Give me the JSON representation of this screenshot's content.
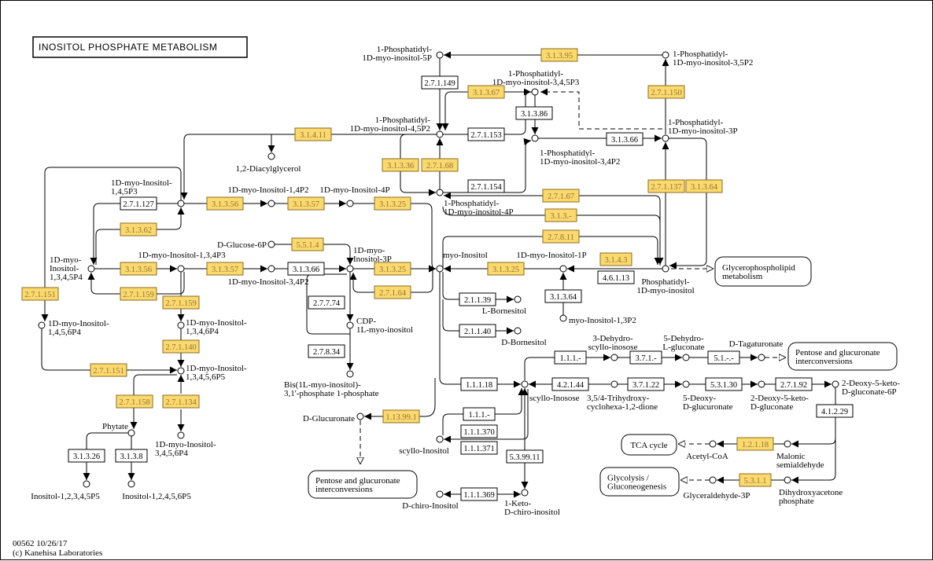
{
  "title": "INOSITOL PHOSPHATE METABOLISM",
  "footer": {
    "code": "00562 10/26/17",
    "copyright": "(c) Kanehisa Laboratories"
  },
  "colors": {
    "highlight_fill": "#fcd96f",
    "highlight_border": "#8a6d1e",
    "highlight_text": "#8c7430"
  },
  "enzymes": [
    {
      "label": "3.1.3.95",
      "highlighted": true
    },
    {
      "label": "2.7.1.149",
      "highlighted": false
    },
    {
      "label": "3.1.3.67",
      "highlighted": true
    },
    {
      "label": "3.1.3.86",
      "highlighted": false
    },
    {
      "label": "2.7.1.150",
      "highlighted": true
    },
    {
      "label": "3.1.4.11",
      "highlighted": true
    },
    {
      "label": "2.7.1.153",
      "highlighted": false
    },
    {
      "label": "3.1.3.66",
      "highlighted": false
    },
    {
      "label": "3.1.3.36",
      "highlighted": true
    },
    {
      "label": "2.7.1.68",
      "highlighted": true
    },
    {
      "label": "2.7.1.154",
      "highlighted": false
    },
    {
      "label": "2.7.1.67",
      "highlighted": true
    },
    {
      "label": "2.7.1.137",
      "highlighted": true
    },
    {
      "label": "3.1.3.64",
      "highlighted": true
    },
    {
      "label": "2.7.1.127",
      "highlighted": false
    },
    {
      "label": "3.1.3.56",
      "highlighted": true
    },
    {
      "label": "3.1.3.57",
      "highlighted": true
    },
    {
      "label": "3.1.3.25",
      "highlighted": true
    },
    {
      "label": "3.1.3.-",
      "highlighted": true
    },
    {
      "label": "3.1.3.62",
      "highlighted": true
    },
    {
      "label": "2.7.8.11",
      "highlighted": true
    },
    {
      "label": "5.5.1.4",
      "highlighted": true
    },
    {
      "label": "3.1.3.56",
      "highlighted": true
    },
    {
      "label": "3.1.3.57",
      "highlighted": true
    },
    {
      "label": "3.1.3.66",
      "highlighted": false
    },
    {
      "label": "3.1.3.25",
      "highlighted": true
    },
    {
      "label": "3.1.3.25",
      "highlighted": true
    },
    {
      "label": "3.1.4.3",
      "highlighted": true
    },
    {
      "label": "4.6.1.13",
      "highlighted": false
    },
    {
      "label": "2.7.1.159",
      "highlighted": true
    },
    {
      "label": "2.7.1.64",
      "highlighted": true
    },
    {
      "label": "2.7.1.151",
      "highlighted": true
    },
    {
      "label": "2.7.1.159",
      "highlighted": true
    },
    {
      "label": "2.7.7.74",
      "highlighted": false
    },
    {
      "label": "2.1.1.39",
      "highlighted": false
    },
    {
      "label": "3.1.3.64",
      "highlighted": false
    },
    {
      "label": "2.1.1.40",
      "highlighted": false
    },
    {
      "label": "2.7.1.140",
      "highlighted": true
    },
    {
      "label": "2.7.8.34",
      "highlighted": false
    },
    {
      "label": "1.1.1.-",
      "highlighted": false
    },
    {
      "label": "3.7.1.-",
      "highlighted": false
    },
    {
      "label": "5.1.-.-",
      "highlighted": false
    },
    {
      "label": "2.7.1.151",
      "highlighted": true
    },
    {
      "label": "1.1.1.18",
      "highlighted": false
    },
    {
      "label": "4.2.1.44",
      "highlighted": false
    },
    {
      "label": "3.7.1.22",
      "highlighted": false
    },
    {
      "label": "5.3.1.30",
      "highlighted": false
    },
    {
      "label": "2.7.1.92",
      "highlighted": false
    },
    {
      "label": "2.7.1.158",
      "highlighted": true
    },
    {
      "label": "2.7.1.134",
      "highlighted": true
    },
    {
      "label": "1.13.99.1",
      "highlighted": true
    },
    {
      "label": "1.1.1.-",
      "highlighted": false
    },
    {
      "label": "4.1.2.29",
      "highlighted": false
    },
    {
      "label": "1.1.1.370",
      "highlighted": false
    },
    {
      "label": "1.1.1.371",
      "highlighted": false
    },
    {
      "label": "1.2.1.18",
      "highlighted": true
    },
    {
      "label": "5.3.99.11",
      "highlighted": false
    },
    {
      "label": "5.3.1.1",
      "highlighted": true
    },
    {
      "label": "1.1.1.369",
      "highlighted": false
    },
    {
      "label": "3.1.3.26",
      "highlighted": false
    },
    {
      "label": "3.1.3.8",
      "highlighted": false
    }
  ],
  "compounds": [
    {
      "lines": [
        "1-Phosphatidyl-",
        "1D-myo-inositol-5P"
      ]
    },
    {
      "lines": [
        "1-Phosphatidyl-",
        "1D-myo-inositol-3,5P2"
      ]
    },
    {
      "lines": [
        "1-Phosphatidyl-",
        "1D-myo-inositol-3,4,5P3"
      ]
    },
    {
      "lines": [
        "1-Phosphatidyl-",
        "1D-myo-inositol-4,5P2"
      ]
    },
    {
      "lines": [
        "1-Phosphatidyl-",
        "1D-myo-inositol-3P"
      ]
    },
    {
      "lines": [
        "1-Phosphatidyl-",
        "1D-myo-inositol-3,4P2"
      ]
    },
    {
      "lines": [
        "1,2-Diacylglycerol"
      ]
    },
    {
      "lines": [
        "1-Phosphatidyl-",
        "1D-myo-inositol-4P"
      ]
    },
    {
      "lines": [
        "1D-myo-Inositol-",
        "1,4,5P3"
      ]
    },
    {
      "lines": [
        "1D-myo-Inositol-1,4P2"
      ]
    },
    {
      "lines": [
        "1D-myo-Inositol-4P"
      ]
    },
    {
      "lines": [
        "D-Glucose-6P"
      ]
    },
    {
      "lines": [
        "1D-myo-",
        "Inositol-3P"
      ]
    },
    {
      "lines": [
        "myo-Inositol"
      ]
    },
    {
      "lines": [
        "1D-myo-Inositol-1P"
      ]
    },
    {
      "lines": [
        "Phosphatidyl-",
        "1D-myo-inositol"
      ]
    },
    {
      "lines": [
        "1D-myo-",
        "Inositol-",
        "1,3,4,5P4"
      ]
    },
    {
      "lines": [
        "1D-myo-Inositol-1,3,4P3"
      ]
    },
    {
      "lines": [
        "1D-myo-Inositol-3,4P2"
      ]
    },
    {
      "lines": [
        "L-Bornesitol"
      ]
    },
    {
      "lines": [
        "myo-Inositol-1,3P2"
      ]
    },
    {
      "lines": [
        "D-Bornesitol"
      ]
    },
    {
      "lines": [
        "CDP-",
        "1L-myo-inositol"
      ]
    },
    {
      "lines": [
        "1D-myo-Inositol-",
        "1,4,5,6P4"
      ]
    },
    {
      "lines": [
        "1D-myo-Inositol-",
        "1,3,4,6P4"
      ]
    },
    {
      "lines": [
        "Bis(1L-myo-inositol)-",
        "3,1'-phosphate 1-phosphate"
      ]
    },
    {
      "lines": [
        "1D-myo-Inositol-",
        "1,3,4,5,6P5"
      ]
    },
    {
      "lines": [
        "3-Dehydro-",
        "scyllo-inosose"
      ]
    },
    {
      "lines": [
        "5-Dehydro-",
        "L-gluconate"
      ]
    },
    {
      "lines": [
        "D-Tagaturonate"
      ]
    },
    {
      "lines": [
        "scyllo-Inosose"
      ]
    },
    {
      "lines": [
        "3,5/4-Trihydroxy-",
        "cyclohexa-1,2-dione"
      ]
    },
    {
      "lines": [
        "5-Deoxy-",
        "D-glucuronate"
      ]
    },
    {
      "lines": [
        "2-Deoxy-5-keto-",
        "D-gluconate"
      ]
    },
    {
      "lines": [
        "2-Deoxy-5-keto-",
        "D-gluconate-6P"
      ]
    },
    {
      "lines": [
        "D-Glucuronate"
      ]
    },
    {
      "lines": [
        "scyllo-Inositol"
      ]
    },
    {
      "lines": [
        "Phytate"
      ]
    },
    {
      "lines": [
        "1D-myo-Inositol-",
        "3,4,5,6P4"
      ]
    },
    {
      "lines": [
        "Acetyl-CoA"
      ]
    },
    {
      "lines": [
        "Malonic",
        "semialdehyde"
      ]
    },
    {
      "lines": [
        "Glyceraldehyde-3P"
      ]
    },
    {
      "lines": [
        "Dihydroxyacetone",
        "phosphate"
      ]
    },
    {
      "lines": [
        "Inositol-1,2,3,4,5P5"
      ]
    },
    {
      "lines": [
        "Inositol-1,2,4,5,6P5"
      ]
    },
    {
      "lines": [
        "D-chiro-Inositol"
      ]
    },
    {
      "lines": [
        "1-Keto-",
        "D-chiro-inositol"
      ]
    }
  ],
  "maps": [
    {
      "lines": [
        "Glycerophospholipid",
        "metabolism"
      ]
    },
    {
      "lines": [
        "Pentose and glucuronate",
        "interconversions"
      ]
    },
    {
      "lines": [
        "Pentose and glucuronate",
        "interconversions"
      ]
    },
    {
      "lines": [
        "TCA cycle"
      ]
    },
    {
      "lines": [
        "Glycolysis /",
        "Gluconeogenesis"
      ]
    }
  ]
}
